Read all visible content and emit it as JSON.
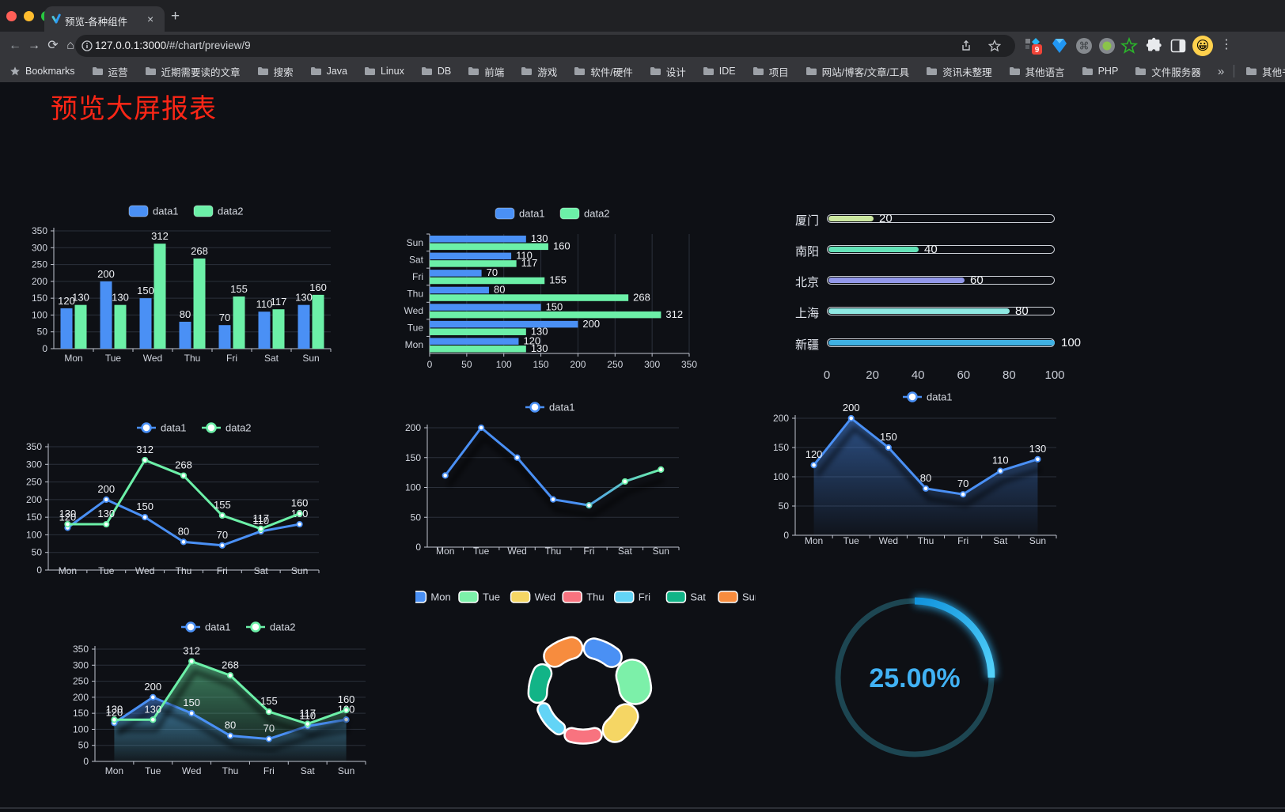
{
  "browser": {
    "tab": {
      "title": "预览-各种组件",
      "close": "×",
      "new_tab": "+"
    },
    "url": {
      "host": "127.0.0.1:3000",
      "path": "/#/chart/preview/9"
    },
    "bookmarks": {
      "star_label": "Bookmarks",
      "folders": [
        "运营",
        "近期需要读的文章",
        "搜索",
        "Java",
        "Linux",
        "DB",
        "前端",
        "游戏",
        "软件/硬件",
        "设计",
        "IDE",
        "项目",
        "网站/博客/文章/工具",
        "资讯未整理",
        "其他语言",
        "PHP",
        "文件服务器"
      ],
      "overflow": "»",
      "other": "其他书签"
    },
    "extensions_badge": "9"
  },
  "page": {
    "title": "预览大屏报表",
    "title_color": "#fb2616"
  },
  "colors": {
    "data1": "#4a90f5",
    "data2": "#6cf0a8",
    "grid": "#2b303b",
    "axis": "#c0c5d0",
    "tick_label": "#d2d6df",
    "value_label": "#f0f2f6"
  },
  "chart_data": [
    {
      "id": "bar-vertical",
      "type": "bar",
      "categories": [
        "Mon",
        "Tue",
        "Wed",
        "Thu",
        "Fri",
        "Sat",
        "Sun"
      ],
      "series": [
        {
          "name": "data1",
          "color": "#4a90f5",
          "values": [
            120,
            200,
            150,
            80,
            70,
            110,
            130
          ]
        },
        {
          "name": "data2",
          "color": "#6cf0a8",
          "values": [
            130,
            130,
            312,
            268,
            155,
            117,
            160
          ]
        }
      ],
      "ylim": [
        0,
        350
      ],
      "ystep": 50,
      "legend": [
        "data1",
        "data2"
      ],
      "grid": true
    },
    {
      "id": "bar-horizontal",
      "type": "bar-horizontal",
      "categories": [
        "Mon",
        "Tue",
        "Wed",
        "Thu",
        "Fri",
        "Sat",
        "Sun"
      ],
      "display_order_top_to_bottom": [
        "Sun",
        "Sat",
        "Fri",
        "Thu",
        "Wed",
        "Tue",
        "Mon"
      ],
      "series": [
        {
          "name": "data1",
          "color": "#4a90f5",
          "values": [
            120,
            200,
            150,
            80,
            70,
            110,
            130
          ]
        },
        {
          "name": "data2",
          "color": "#6cf0a8",
          "values": [
            130,
            130,
            312,
            268,
            155,
            117,
            160
          ]
        }
      ],
      "xlim": [
        0,
        350
      ],
      "xstep": 50,
      "legend": [
        "data1",
        "data2"
      ]
    },
    {
      "id": "progress-bars",
      "type": "progress",
      "items": [
        {
          "label": "厦门",
          "value": 20,
          "color": "#cbe7a0"
        },
        {
          "label": "南阳",
          "value": 40,
          "color": "#63e2b7"
        },
        {
          "label": "北京",
          "value": 60,
          "color": "#9298ea"
        },
        {
          "label": "上海",
          "value": 80,
          "color": "#8fe9e3"
        },
        {
          "label": "新疆",
          "value": 100,
          "color": "#3fb1e3"
        }
      ],
      "xlim": [
        0,
        100
      ],
      "xticks": [
        0,
        20,
        40,
        60,
        80,
        100
      ]
    },
    {
      "id": "line-basic",
      "type": "line",
      "categories": [
        "Mon",
        "Tue",
        "Wed",
        "Thu",
        "Fri",
        "Sat",
        "Sun"
      ],
      "series": [
        {
          "name": "data1",
          "color": "#4a90f5",
          "values": [
            120,
            200,
            150,
            80,
            70,
            110,
            130
          ]
        },
        {
          "name": "data2",
          "color": "#6cf0a8",
          "values": [
            130,
            130,
            312,
            268,
            155,
            117,
            160
          ]
        }
      ],
      "ylim": [
        0,
        350
      ],
      "ystep": 50,
      "legend": [
        "data1",
        "data2"
      ],
      "labels": true
    },
    {
      "id": "line-gradient",
      "type": "line",
      "categories": [
        "Mon",
        "Tue",
        "Wed",
        "Thu",
        "Fri",
        "Sat",
        "Sun"
      ],
      "series": [
        {
          "name": "data1",
          "gradient": [
            "#4a90f5",
            "#6cf0a8"
          ],
          "values": [
            120,
            200,
            150,
            80,
            70,
            110,
            130
          ]
        }
      ],
      "ylim": [
        0,
        200
      ],
      "ystep": 50,
      "legend": [
        "data1"
      ],
      "labels": false,
      "shadow": true
    },
    {
      "id": "line-area-single",
      "type": "area",
      "categories": [
        "Mon",
        "Tue",
        "Wed",
        "Thu",
        "Fri",
        "Sat",
        "Sun"
      ],
      "series": [
        {
          "name": "data1",
          "color": "#4a90f5",
          "values": [
            120,
            200,
            150,
            80,
            70,
            110,
            130
          ]
        }
      ],
      "ylim": [
        0,
        200
      ],
      "ystep": 50,
      "legend": [
        "data1"
      ],
      "labels": true,
      "shadow": true
    },
    {
      "id": "line-area-double",
      "type": "area",
      "categories": [
        "Mon",
        "Tue",
        "Wed",
        "Thu",
        "Fri",
        "Sat",
        "Sun"
      ],
      "series": [
        {
          "name": "data1",
          "color": "#4a90f5",
          "values": [
            120,
            200,
            150,
            80,
            70,
            110,
            130
          ]
        },
        {
          "name": "data2",
          "color": "#6cf0a8",
          "values": [
            130,
            130,
            312,
            268,
            155,
            117,
            160
          ]
        }
      ],
      "ylim": [
        0,
        350
      ],
      "ystep": 50,
      "legend": [
        "data1",
        "data2"
      ],
      "labels": true,
      "shadow": true
    },
    {
      "id": "pie-rose",
      "type": "pie",
      "items": [
        {
          "name": "Mon",
          "value": 120,
          "color": "#4a90f4"
        },
        {
          "name": "Tue",
          "value": 200,
          "color": "#7cf0a9"
        },
        {
          "name": "Wed",
          "value": 150,
          "color": "#f5d664"
        },
        {
          "name": "Thu",
          "value": 80,
          "color": "#f8737f"
        },
        {
          "name": "Fri",
          "value": 70,
          "color": "#63d4f6"
        },
        {
          "name": "Sat",
          "value": 110,
          "color": "#12b487"
        },
        {
          "name": "Sun",
          "value": 130,
          "color": "#f78c3e"
        }
      ],
      "legend_position": "top",
      "rose": true
    },
    {
      "id": "gauge-progress",
      "type": "gauge",
      "value_label": "25.00%",
      "percent": 25,
      "progress_color": "#2db7f5",
      "track_color": "#1d4652",
      "text_color": "#41b2f4"
    }
  ]
}
